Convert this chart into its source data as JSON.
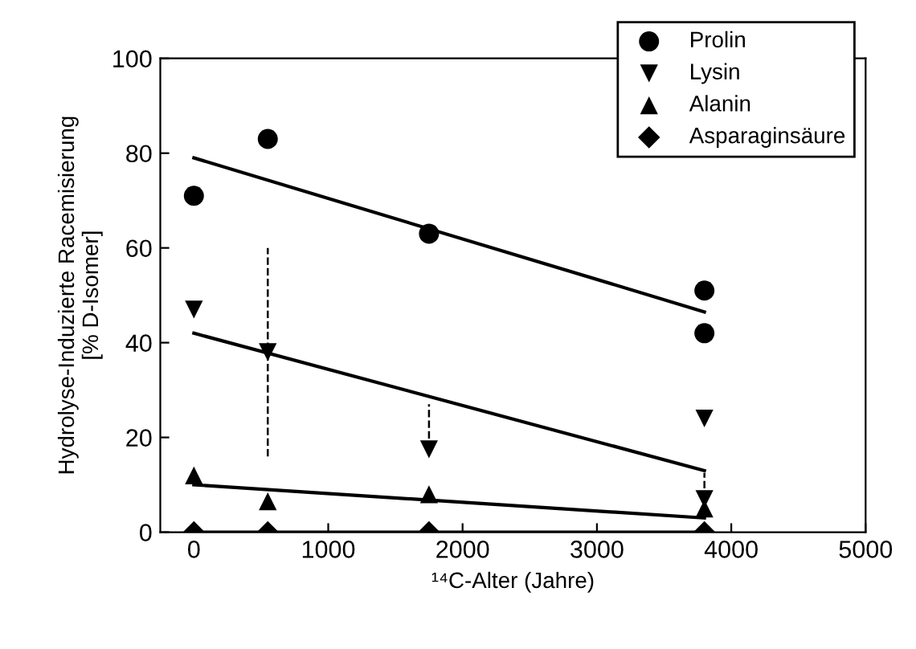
{
  "chart_data": {
    "type": "scatter",
    "xlabel": "¹⁴C-Alter (Jahre)",
    "ylabel": "Hydrolyse-Induzierte Racemisierung\n[% D-Isomer]",
    "xlim": [
      -250,
      5000
    ],
    "ylim": [
      0,
      100
    ],
    "xticks": [
      0,
      1000,
      2000,
      3000,
      4000,
      5000
    ],
    "yticks": [
      0,
      20,
      40,
      60,
      80,
      100
    ],
    "grid": false,
    "legend": "top right",
    "series": [
      {
        "name": "Prolin",
        "marker": "circle",
        "color": "#000000",
        "x": [
          0,
          550,
          1750,
          3800,
          3800
        ],
        "values": [
          71,
          83,
          63,
          51,
          42
        ]
      },
      {
        "name": "Lysin",
        "marker": "triangle_down",
        "color": "#000000",
        "x": [
          0,
          550,
          1750,
          3800,
          3800
        ],
        "values": [
          47,
          38,
          17.5,
          24,
          7
        ],
        "errors": [
          null,
          [
            16,
            60
          ],
          [
            17.5,
            27
          ],
          null,
          [
            7,
            12.5
          ]
        ],
        "line_style": "dashed"
      },
      {
        "name": "Alanin",
        "marker": "triangle",
        "color": "#000000",
        "x": [
          0,
          550,
          1750,
          3800
        ],
        "values": [
          12,
          6.5,
          8,
          5
        ]
      },
      {
        "name": "Asparaginsäure",
        "marker": "diamond",
        "color": "#000000",
        "x": [
          0,
          550,
          1750,
          3800
        ],
        "values": [
          0,
          0,
          0,
          0
        ]
      },
      {
        "type": "line",
        "color": "#000000",
        "x": [
          0,
          3800
        ],
        "values": [
          79,
          46.5
        ]
      },
      {
        "type": "line",
        "color": "#000000",
        "x": [
          0,
          3800
        ],
        "values": [
          42,
          13
        ]
      },
      {
        "type": "line",
        "color": "#000000",
        "x": [
          0,
          3800
        ],
        "values": [
          10,
          3
        ]
      },
      {
        "type": "line",
        "color": "#000000",
        "x": [
          0,
          3800
        ],
        "values": [
          0,
          0
        ]
      }
    ]
  }
}
